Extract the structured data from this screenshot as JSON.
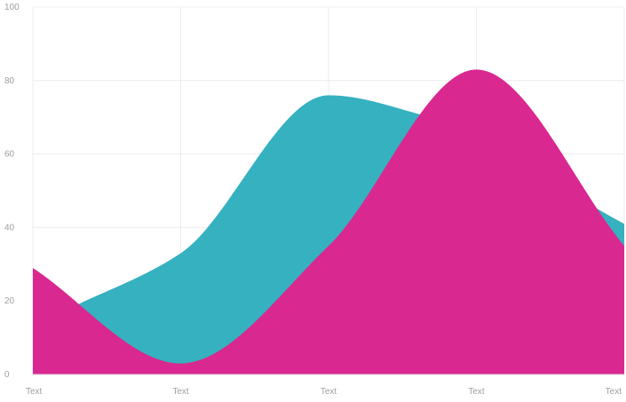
{
  "chart_data": {
    "type": "area",
    "title": "",
    "xlabel": "",
    "ylabel": "",
    "categories": [
      "Text",
      "Text",
      "Text",
      "Text",
      "Text"
    ],
    "ylim": [
      0,
      100
    ],
    "yticks": [
      0,
      20,
      40,
      60,
      80,
      100
    ],
    "grid": true,
    "legend": "none",
    "series": [
      {
        "color": "#36b1bf",
        "points": [
          {
            "x": 0.25,
            "y": 18
          },
          {
            "x": 1.0,
            "y": 33
          },
          {
            "x": 2.0,
            "y": 76
          },
          {
            "x": 2.6,
            "y": 71
          },
          {
            "x": 4.0,
            "y": 41
          }
        ]
      },
      {
        "color": "#d9288f",
        "points": [
          {
            "x": 0.0,
            "y": 29
          },
          {
            "x": 1.0,
            "y": 3
          },
          {
            "x": 2.0,
            "y": 35
          },
          {
            "x": 3.0,
            "y": 83
          },
          {
            "x": 4.0,
            "y": 35
          }
        ]
      }
    ]
  }
}
